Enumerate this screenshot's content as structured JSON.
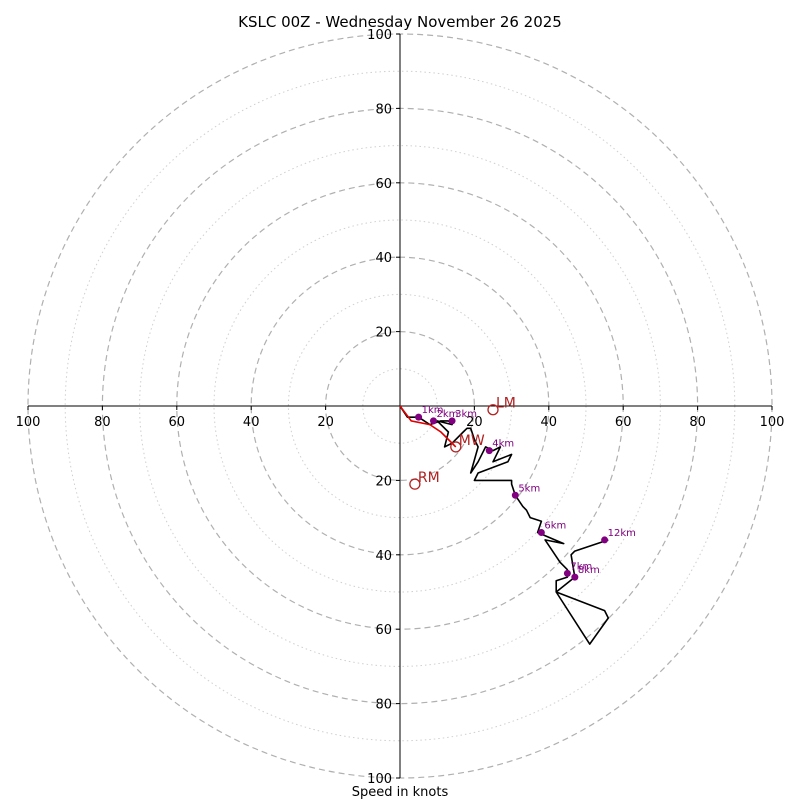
{
  "chart_data": {
    "type": "hodograph",
    "title": "KSLC 00Z - Wednesday November 26 2025",
    "xlabel": "Speed in knots",
    "range_max": 100,
    "ring_major_step": 20,
    "ring_minor_step": 10,
    "tick_labels": {
      "top": [
        "20",
        "40",
        "60",
        "80",
        "100"
      ],
      "bottom": [
        "20",
        "40",
        "60",
        "80",
        "100"
      ],
      "left": [
        "20",
        "40",
        "60",
        "80",
        "100"
      ],
      "right": [
        "20",
        "40",
        "60",
        "80",
        "100"
      ]
    },
    "trace": [
      [
        0,
        0
      ],
      [
        2,
        -3
      ],
      [
        5,
        -3
      ],
      [
        8,
        -5
      ],
      [
        11,
        -4
      ],
      [
        13,
        -4
      ],
      [
        14,
        -5
      ],
      [
        10,
        -4
      ],
      [
        13,
        -7
      ],
      [
        12,
        -11
      ],
      [
        14,
        -10
      ],
      [
        17,
        -7
      ],
      [
        18,
        -6
      ],
      [
        19,
        -6
      ],
      [
        20,
        -9
      ],
      [
        21,
        -11
      ],
      [
        19,
        -18
      ],
      [
        21,
        -15
      ],
      [
        23,
        -11
      ],
      [
        25,
        -12
      ],
      [
        27,
        -11
      ],
      [
        25,
        -15
      ],
      [
        30,
        -13
      ],
      [
        29,
        -15
      ],
      [
        21,
        -18
      ],
      [
        20,
        -20
      ],
      [
        30,
        -20
      ],
      [
        30,
        -21
      ],
      [
        31,
        -24
      ],
      [
        33,
        -27
      ],
      [
        34,
        -28
      ],
      [
        35,
        -30
      ],
      [
        38,
        -31
      ],
      [
        37,
        -34
      ],
      [
        44,
        -37
      ],
      [
        39,
        -36
      ],
      [
        43,
        -42
      ],
      [
        45,
        -44
      ],
      [
        45,
        -46
      ],
      [
        42,
        -47
      ],
      [
        42,
        -50
      ],
      [
        55,
        -55
      ],
      [
        56,
        -57
      ],
      [
        51,
        -64
      ],
      [
        42,
        -50
      ],
      [
        47,
        -46
      ],
      [
        46,
        -40
      ],
      [
        47,
        -39
      ],
      [
        56,
        -36
      ]
    ],
    "trace_color": "#000000",
    "height_markers": [
      {
        "label": "1km",
        "u": 5,
        "v": -3
      },
      {
        "label": "2km",
        "u": 9,
        "v": -4
      },
      {
        "label": "3km",
        "u": 14,
        "v": -4
      },
      {
        "label": "4km",
        "u": 24,
        "v": -12
      },
      {
        "label": "5km",
        "u": 31,
        "v": -24
      },
      {
        "label": "6km",
        "u": 38,
        "v": -34
      },
      {
        "label": "7km",
        "u": 45,
        "v": -45
      },
      {
        "label": "8km",
        "u": 47,
        "v": -46
      },
      {
        "label": "12km",
        "u": 55,
        "v": -36
      }
    ],
    "height_marker_color": "#800080",
    "motion_markers": [
      {
        "label": "LM",
        "u": 25,
        "v": -1
      },
      {
        "label": "MW",
        "u": 15,
        "v": -11
      },
      {
        "label": "RM",
        "u": 4,
        "v": -21
      }
    ],
    "motion_marker_color": "#b22222",
    "storm_motion_line": [
      [
        0,
        0
      ],
      [
        3,
        -4
      ],
      [
        8,
        -5
      ],
      [
        11,
        -7
      ],
      [
        13,
        -9
      ],
      [
        15,
        -11
      ]
    ],
    "storm_motion_color": "#e00000"
  }
}
